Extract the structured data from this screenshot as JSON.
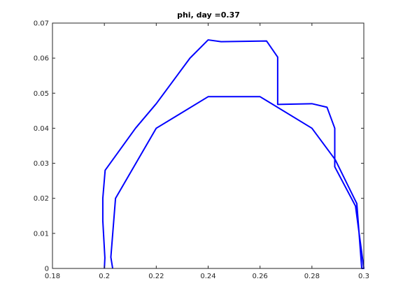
{
  "chart_data": {
    "type": "line",
    "title": "phi, day =0.37",
    "xlabel": "",
    "ylabel": "",
    "xlim": [
      0.18,
      0.3
    ],
    "ylim": [
      0,
      0.07
    ],
    "grid": false,
    "x_ticks": [
      0.18,
      0.2,
      0.22,
      0.24,
      0.26,
      0.28,
      0.3
    ],
    "x_tick_labels": [
      "0.18",
      "0.2",
      "0.22",
      "0.24",
      "0.26",
      "0.28",
      "0.3"
    ],
    "y_ticks": [
      0,
      0.01,
      0.02,
      0.03,
      0.04,
      0.05,
      0.06,
      0.07
    ],
    "y_tick_labels": [
      "0",
      "0.01",
      "0.02",
      "0.03",
      "0.04",
      "0.05",
      "0.06",
      "0.07"
    ],
    "series": [
      {
        "color": "#0000ff",
        "x": [
          0.2,
          0.2002,
          0.1994,
          0.1994,
          0.2003,
          0.212,
          0.22,
          0.233,
          0.24,
          0.245,
          0.2625,
          0.2668,
          0.2668,
          0.28,
          0.2858,
          0.2888,
          0.2888,
          0.2968,
          0.3,
          0.2992,
          0.2973,
          0.289,
          0.28,
          0.26,
          0.24,
          0.22,
          0.2043,
          0.2025,
          0.2025,
          0.2032
        ],
        "y": [
          0,
          0.003,
          0.0136,
          0.02,
          0.028,
          0.04,
          0.047,
          0.06,
          0.0652,
          0.0647,
          0.0649,
          0.0603,
          0.0468,
          0.047,
          0.046,
          0.04,
          0.029,
          0.0178,
          0,
          0,
          0.0185,
          0.031,
          0.04,
          0.049,
          0.049,
          0.04,
          0.02,
          0.0032,
          0.0032,
          0
        ]
      }
    ]
  }
}
